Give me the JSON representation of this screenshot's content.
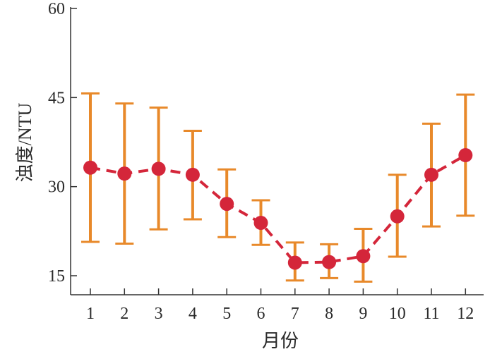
{
  "chart_data": {
    "type": "line",
    "title": "",
    "xlabel": "月份",
    "ylabel": "浊度/NTU",
    "categories": [
      "1",
      "2",
      "3",
      "4",
      "5",
      "6",
      "7",
      "8",
      "9",
      "10",
      "11",
      "12"
    ],
    "ylim": [
      12,
      60
    ],
    "y_ticks": [
      15,
      30,
      45,
      60
    ],
    "grid": false,
    "legend": "none",
    "series": [
      {
        "values": [
          33.2,
          32.2,
          33.0,
          32.0,
          27.1,
          23.9,
          17.2,
          17.3,
          18.3,
          25.0,
          32.0,
          35.3
        ],
        "error_low": [
          20.7,
          20.4,
          22.8,
          24.5,
          21.5,
          20.2,
          14.2,
          14.6,
          14.0,
          18.2,
          23.3,
          25.1
        ],
        "error_high": [
          45.7,
          44.0,
          43.3,
          39.4,
          32.9,
          27.7,
          20.6,
          20.3,
          22.9,
          32.0,
          40.6,
          45.5
        ]
      }
    ],
    "colors": {
      "line": "#d4263a",
      "marker": "#d4263a",
      "error_bar": "#e8892a",
      "axis": "#333333"
    }
  }
}
